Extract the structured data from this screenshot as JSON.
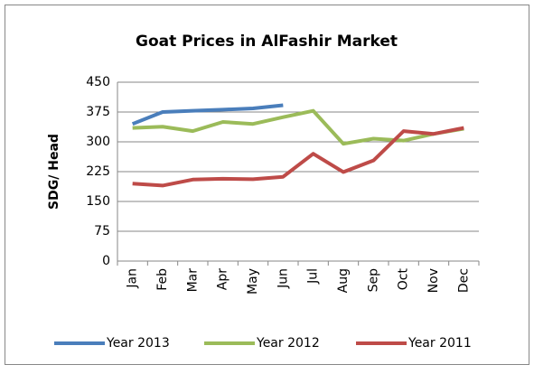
{
  "chart_data": {
    "type": "line",
    "title": "Goat Prices in AlFashir Market",
    "y_label": "SDG/ Head",
    "categories": [
      "Jan",
      "Feb",
      "Mar",
      "Apr",
      "May",
      "Jun",
      "Jul",
      "Aug",
      "Sep",
      "Oct",
      "Nov",
      "Dec"
    ],
    "series": [
      {
        "name": "Year 2013",
        "color": "#4a7ebb",
        "values": [
          345,
          375,
          378,
          381,
          384,
          392,
          null,
          null,
          null,
          null,
          null,
          null
        ]
      },
      {
        "name": "Year 2012",
        "color": "#9bbb59",
        "values": [
          335,
          338,
          327,
          350,
          345,
          362,
          378,
          295,
          308,
          303,
          320,
          333
        ]
      },
      {
        "name": "Year 2011",
        "color": "#be4b48",
        "values": [
          195,
          190,
          205,
          207,
          206,
          212,
          270,
          224,
          253,
          327,
          320,
          335
        ]
      }
    ],
    "ylim": [
      0,
      450
    ],
    "yticks": [
      0,
      75,
      150,
      225,
      300,
      375,
      450
    ],
    "grid": true,
    "legend": "bottom"
  }
}
